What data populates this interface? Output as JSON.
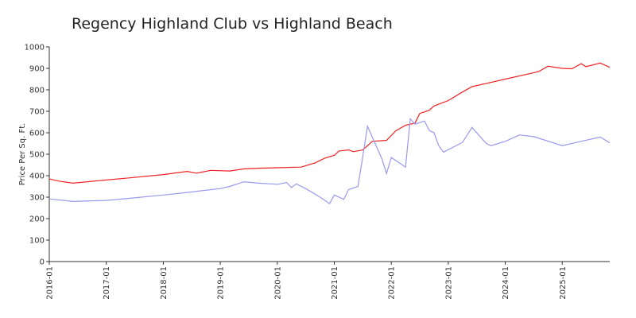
{
  "chart_data": {
    "type": "line",
    "title": "Regency Highland Club vs Highland Beach",
    "y_label": "Price Per Sq. Ft.",
    "ylim": [
      0,
      1000
    ],
    "yticks": [
      0,
      100,
      200,
      300,
      400,
      500,
      600,
      700,
      800,
      900,
      1000
    ],
    "xlim": [
      "2016-01",
      "2025-11"
    ],
    "xticks": [
      "2016-01",
      "2017-01",
      "2018-01",
      "2019-01",
      "2020-01",
      "2021-01",
      "2022-01",
      "2023-01",
      "2024-01",
      "2025-01"
    ],
    "series": [
      {
        "color": "#ee2222",
        "x": [
          "2016-01",
          "2016-03",
          "2016-06",
          "2016-09",
          "2017-01",
          "2017-06",
          "2018-01",
          "2018-06",
          "2018-08",
          "2018-11",
          "2019-03",
          "2019-06",
          "2019-09",
          "2020-01",
          "2020-06",
          "2020-09",
          "2020-11",
          "2021-01",
          "2021-02",
          "2021-04",
          "2021-05",
          "2021-07",
          "2021-09",
          "2021-12",
          "2022-02",
          "2022-04",
          "2022-06",
          "2022-07",
          "2022-09",
          "2022-10",
          "2023-01",
          "2023-04",
          "2023-06",
          "2023-09",
          "2024-01",
          "2024-06",
          "2024-08",
          "2024-10",
          "2025-01",
          "2025-03",
          "2025-05",
          "2025-06",
          "2025-09",
          "2025-11"
        ],
        "values": [
          385,
          375,
          365,
          372,
          380,
          390,
          405,
          420,
          412,
          425,
          422,
          432,
          435,
          437,
          440,
          460,
          482,
          495,
          515,
          520,
          512,
          520,
          560,
          565,
          610,
          635,
          645,
          690,
          705,
          725,
          750,
          790,
          815,
          830,
          850,
          875,
          885,
          910,
          900,
          898,
          922,
          908,
          925,
          905
        ]
      },
      {
        "color": "#9999ee",
        "x": [
          "2016-01",
          "2016-06",
          "2017-01",
          "2017-06",
          "2018-01",
          "2018-06",
          "2019-01",
          "2019-03",
          "2019-06",
          "2019-09",
          "2020-01",
          "2020-03",
          "2020-04",
          "2020-05",
          "2020-07",
          "2020-10",
          "2020-12",
          "2021-01",
          "2021-03",
          "2021-04",
          "2021-06",
          "2021-08",
          "2021-11",
          "2021-12",
          "2022-01",
          "2022-04",
          "2022-05",
          "2022-06",
          "2022-08",
          "2022-09",
          "2022-10",
          "2022-11",
          "2022-12",
          "2023-04",
          "2023-06",
          "2023-09",
          "2023-10",
          "2024-01",
          "2024-04",
          "2024-07",
          "2025-01",
          "2025-04",
          "2025-09",
          "2025-11"
        ],
        "values": [
          292,
          280,
          285,
          295,
          310,
          322,
          340,
          350,
          372,
          365,
          360,
          368,
          345,
          362,
          340,
          300,
          270,
          310,
          290,
          335,
          350,
          630,
          480,
          410,
          485,
          440,
          665,
          640,
          655,
          610,
          600,
          540,
          510,
          555,
          625,
          550,
          540,
          560,
          590,
          582,
          540,
          555,
          580,
          553
        ]
      }
    ]
  }
}
